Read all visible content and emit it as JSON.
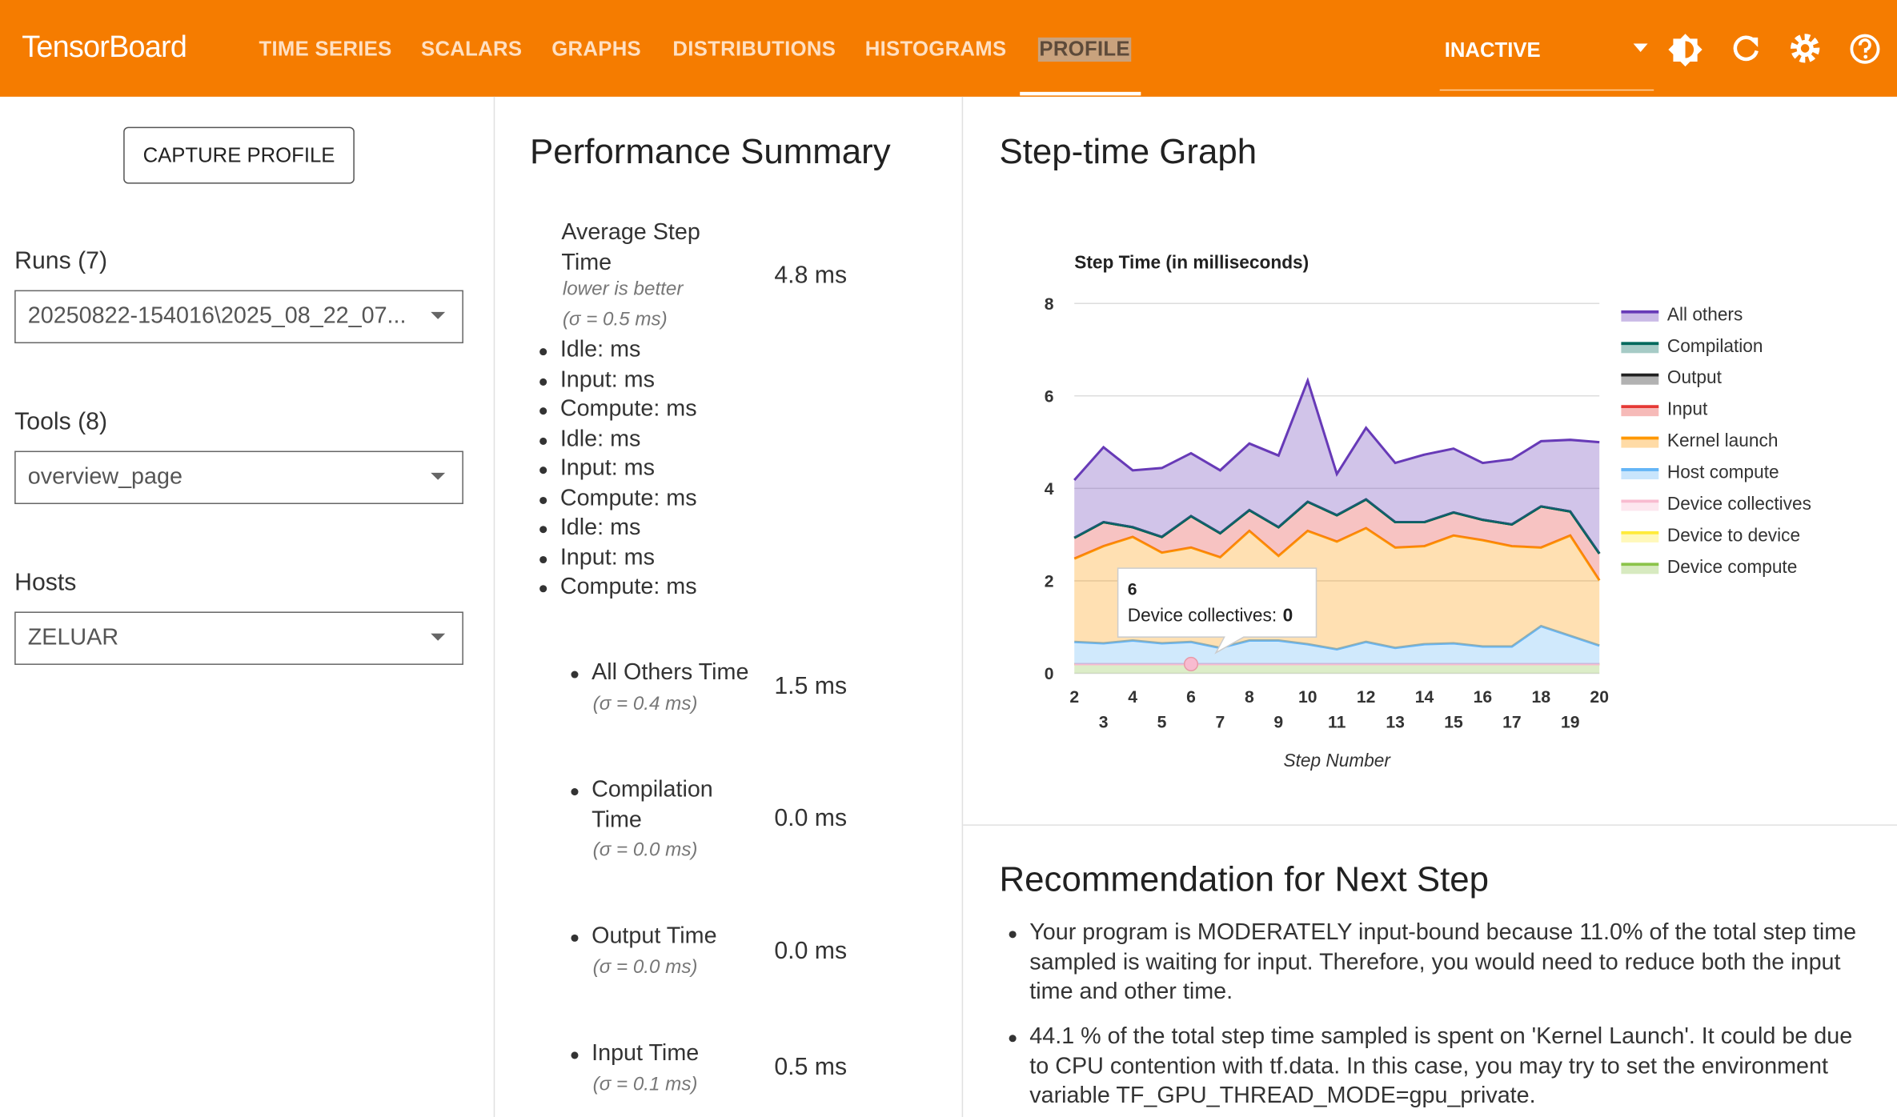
{
  "header": {
    "brand": "TensorBoard",
    "nav": [
      "TIME SERIES",
      "SCALARS",
      "GRAPHS",
      "DISTRIBUTIONS",
      "HISTOGRAMS",
      "PROFILE"
    ],
    "status": "INACTIVE"
  },
  "sidebar": {
    "button": "CAPTURE PROFILE",
    "runs": {
      "label": "Runs (7)",
      "value": "20250822-154016\\2025_08_22_07..."
    },
    "tools": {
      "label": "Tools (8)",
      "value": "overview_page"
    },
    "hosts": {
      "label": "Hosts",
      "value": "ZELUAR"
    }
  },
  "summary": {
    "title": "Performance Summary",
    "average": {
      "label": "Average Step Time",
      "note": "lower is better",
      "sigma": "(σ = 0.5 ms)",
      "value": "4.8 ms"
    },
    "breakdown": [
      "Idle: ms",
      "Input: ms",
      "Compute: ms",
      "Idle: ms",
      "Input: ms",
      "Compute: ms",
      "Idle: ms",
      "Input: ms",
      "Compute: ms"
    ],
    "items": [
      {
        "label": "All Others Time",
        "sigma": "(σ = 0.4 ms)",
        "value": "1.5 ms"
      },
      {
        "label": "Compilation Time",
        "sigma": "(σ = 0.0 ms)",
        "value": "0.0 ms"
      },
      {
        "label": "Output Time",
        "sigma": "(σ = 0.0 ms)",
        "value": "0.0 ms"
      },
      {
        "label": "Input Time",
        "sigma": "(σ = 0.1 ms)",
        "value": "0.5 ms"
      }
    ]
  },
  "graph": {
    "title": "Step-time Graph"
  },
  "chart_data": {
    "type": "area",
    "stacked": true,
    "title": "Step Time (in milliseconds)",
    "x_label": "Step Number",
    "x": [
      2,
      3,
      4,
      5,
      6,
      7,
      8,
      9,
      10,
      11,
      12,
      13,
      14,
      15,
      16,
      17,
      18,
      19,
      20
    ],
    "xticks": [
      2,
      3,
      4,
      5,
      6,
      7,
      8,
      9,
      10,
      11,
      12,
      13,
      14,
      15,
      16,
      17,
      18,
      19,
      20
    ],
    "xlim": [
      2,
      20
    ],
    "ylim": [
      0,
      8
    ],
    "yticks": [
      0,
      2,
      4,
      6,
      8
    ],
    "grid": true,
    "series": [
      {
        "name": "All others",
        "color": "#673ab7",
        "values": [
          1.25,
          1.62,
          1.23,
          1.49,
          1.36,
          1.36,
          1.44,
          1.55,
          2.62,
          0.89,
          1.55,
          1.28,
          1.46,
          1.38,
          1.23,
          1.41,
          1.41,
          1.55,
          2.41
        ]
      },
      {
        "name": "Compilation",
        "color": "#00695c",
        "values": [
          0,
          0,
          0,
          0,
          0,
          0,
          0,
          0,
          0,
          0,
          0,
          0,
          0,
          0,
          0,
          0,
          0,
          0,
          0
        ]
      },
      {
        "name": "Output",
        "color": "#212121",
        "values": [
          0,
          0,
          0,
          0,
          0,
          0,
          0,
          0,
          0,
          0,
          0,
          0,
          0,
          0,
          0,
          0,
          0,
          0,
          0
        ]
      },
      {
        "name": "Input",
        "color": "#e53935",
        "values": [
          0.45,
          0.52,
          0.21,
          0.34,
          0.68,
          0.52,
          0.45,
          0.62,
          0.63,
          0.57,
          0.62,
          0.55,
          0.52,
          0.5,
          0.44,
          0.47,
          0.89,
          0.52,
          0.58
        ]
      },
      {
        "name": "Kernel launch",
        "color": "#ff9800",
        "values": [
          1.8,
          2.1,
          2.24,
          1.96,
          2.04,
          1.96,
          2.37,
          1.83,
          2.45,
          2.33,
          2.46,
          2.17,
          2.12,
          2.33,
          2.3,
          2.17,
          1.7,
          2.17,
          1.41
        ]
      },
      {
        "name": "Host compute",
        "color": "#64b5f6",
        "values": [
          0.48,
          0.45,
          0.51,
          0.45,
          0.48,
          0.35,
          0.51,
          0.51,
          0.43,
          0.32,
          0.48,
          0.35,
          0.43,
          0.45,
          0.38,
          0.38,
          0.82,
          0.61,
          0.4
        ]
      },
      {
        "name": "Device collectives",
        "color": "#f8bbd0",
        "values": [
          0,
          0,
          0,
          0,
          0,
          0,
          0,
          0,
          0,
          0,
          0,
          0,
          0,
          0,
          0,
          0,
          0,
          0,
          0
        ]
      },
      {
        "name": "Device to device",
        "color": "#ffeb3b",
        "values": [
          0,
          0,
          0,
          0,
          0,
          0,
          0,
          0,
          0,
          0,
          0,
          0,
          0,
          0,
          0,
          0,
          0,
          0,
          0
        ]
      },
      {
        "name": "Device compute",
        "color": "#8bc34a",
        "values": [
          0.2,
          0.2,
          0.2,
          0.2,
          0.2,
          0.2,
          0.2,
          0.2,
          0.2,
          0.2,
          0.2,
          0.2,
          0.2,
          0.2,
          0.2,
          0.2,
          0.2,
          0.2,
          0.2
        ]
      }
    ],
    "tooltip": {
      "x": 6,
      "label": "Device collectives:",
      "value": 0
    }
  },
  "recommendation": {
    "title": "Recommendation for Next Step",
    "bullets": [
      "Your program is MODERATELY input-bound because 11.0% of the total step time sampled is waiting for input. Therefore, you would need to reduce both the input time and other time.",
      "44.1 % of the total step time sampled is spent on 'Kernel Launch'. It could be due to CPU contention with tf.data. In this case, you may try to set the environment variable TF_GPU_THREAD_MODE=gpu_private."
    ]
  }
}
